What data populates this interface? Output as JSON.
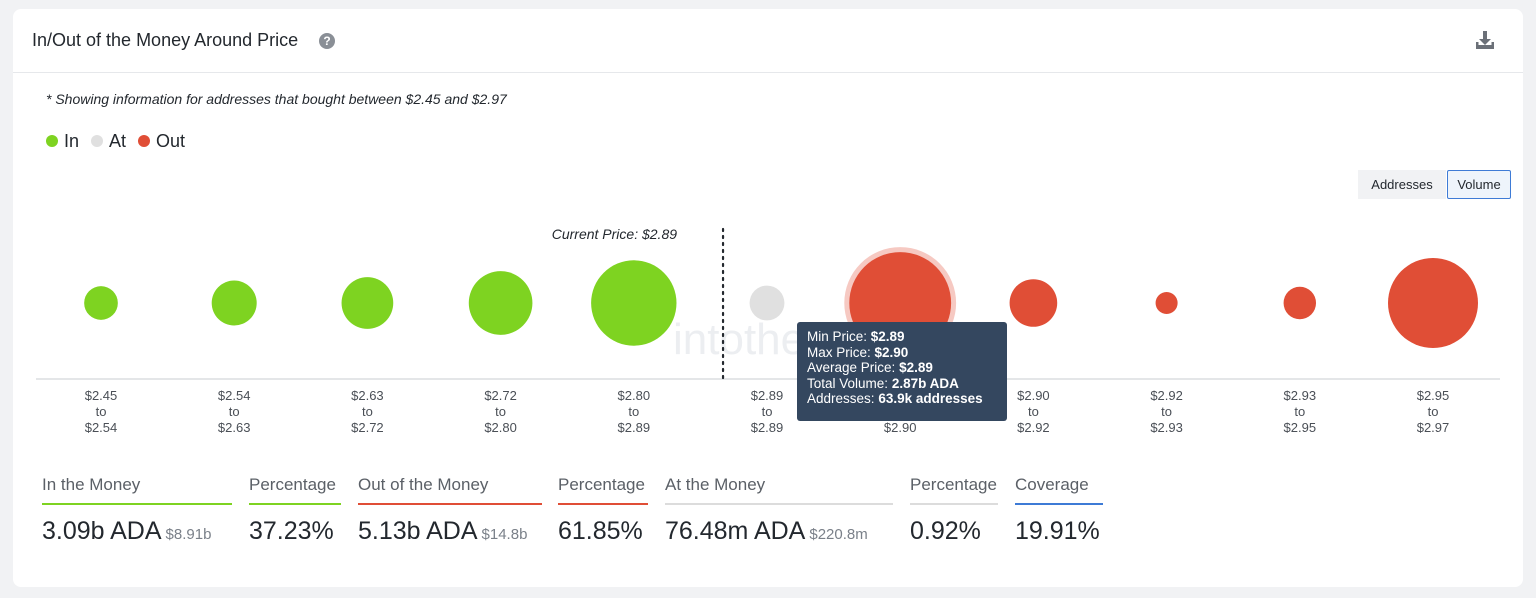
{
  "header": {
    "title": "In/Out of the Money Around Price"
  },
  "note": "* Showing information for addresses that bought between $2.45 and $2.97",
  "legend": [
    {
      "label": "In",
      "color": "#7ed321"
    },
    {
      "label": "At",
      "color": "#e0e0e0"
    },
    {
      "label": "Out",
      "color": "#e04e36"
    }
  ],
  "toggles": {
    "addresses": "Addresses",
    "volume": "Volume",
    "selected": "Volume"
  },
  "icons": {
    "help": "question-circle-icon",
    "download": "download-icon"
  },
  "chart_data": {
    "type": "bubble",
    "current_price_label": "Current Price: $2.89",
    "current_price_position": "between bins 5 and 6",
    "watermark": "intotheblock",
    "bins": [
      {
        "from": "$2.45",
        "conn": "to",
        "to": "$2.54",
        "status": "In",
        "size": 0.14
      },
      {
        "from": "$2.54",
        "conn": "to",
        "to": "$2.63",
        "status": "In",
        "size": 0.25
      },
      {
        "from": "$2.63",
        "conn": "to",
        "to": "$2.72",
        "status": "In",
        "size": 0.33
      },
      {
        "from": "$2.72",
        "conn": "to",
        "to": "$2.80",
        "status": "In",
        "size": 0.5
      },
      {
        "from": "$2.80",
        "conn": "to",
        "to": "$2.89",
        "status": "In",
        "size": 0.9
      },
      {
        "from": "$2.89",
        "conn": "to",
        "to": "$2.89",
        "status": "At",
        "size": 0.15
      },
      {
        "from": "$2.89",
        "conn": "to",
        "to": "$2.90",
        "status": "Out",
        "size": 1.28,
        "highlighted": true
      },
      {
        "from": "$2.90",
        "conn": "to",
        "to": "$2.92",
        "status": "Out",
        "size": 0.28
      },
      {
        "from": "$2.92",
        "conn": "to",
        "to": "$2.93",
        "status": "Out",
        "size": 0.06
      },
      {
        "from": "$2.93",
        "conn": "to",
        "to": "$2.95",
        "status": "Out",
        "size": 0.13
      },
      {
        "from": "$2.95",
        "conn": "to",
        "to": "$2.97",
        "status": "Out",
        "size": 1.0
      }
    ],
    "tooltip": {
      "min_price_label": "Min Price:",
      "min_price": "$2.89",
      "max_price_label": "Max Price:",
      "max_price": "$2.90",
      "avg_price_label": "Average Price:",
      "avg_price": "$2.89",
      "total_volume_label": "Total Volume:",
      "total_volume": "2.87b ADA",
      "addresses_label": "Addresses:",
      "addresses": "63.9k addresses"
    }
  },
  "stats": [
    {
      "label": "In the Money",
      "value": "3.09b ADA",
      "sub": "$8.91b",
      "color": "#7ed321"
    },
    {
      "label": "Percentage",
      "value": "37.23%",
      "sub": "",
      "color": "#7ed321"
    },
    {
      "label": "Out of the Money",
      "value": "5.13b ADA",
      "sub": "$14.8b",
      "color": "#e04e36"
    },
    {
      "label": "Percentage",
      "value": "61.85%",
      "sub": "",
      "color": "#e04e36"
    },
    {
      "label": "At the Money",
      "value": "76.48m ADA",
      "sub": "$220.8m",
      "color": "#dcdcdc"
    },
    {
      "label": "Percentage",
      "value": "0.92%",
      "sub": "",
      "color": "#dcdcdc"
    },
    {
      "label": "Coverage",
      "value": "19.91%",
      "sub": "",
      "color": "#3e7bd6"
    }
  ]
}
